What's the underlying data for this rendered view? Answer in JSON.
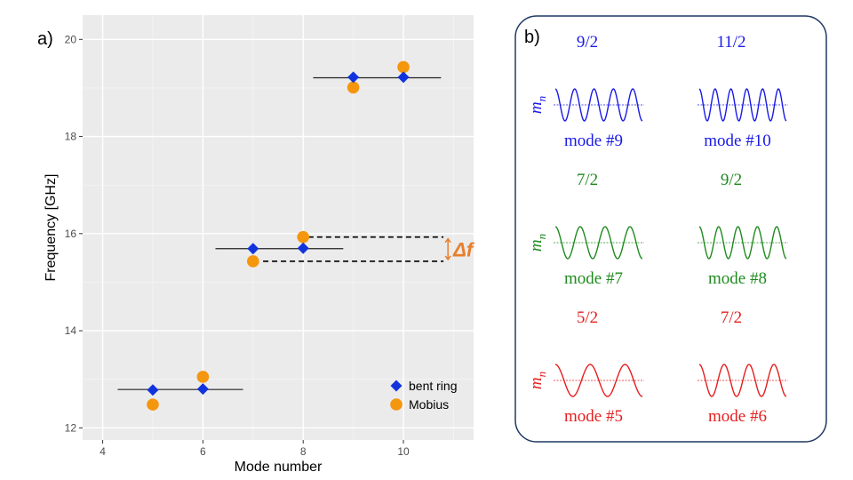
{
  "panel_a": {
    "label": "a)",
    "chart_data": {
      "type": "scatter",
      "xlabel": "Mode number",
      "ylabel": "Frequency [GHz]",
      "xlim": [
        3.6,
        11.4
      ],
      "ylim": [
        11.75,
        20.5
      ],
      "xticks": [
        4,
        6,
        8,
        10
      ],
      "yticks": [
        12,
        14,
        16,
        18,
        20
      ],
      "grid": true,
      "legend_position": "bottom-right",
      "series": [
        {
          "name": "bent ring",
          "marker": "diamond",
          "color": "#1133dd",
          "points": [
            [
              5,
              12.78
            ],
            [
              6,
              12.8
            ],
            [
              7,
              15.69
            ],
            [
              8,
              15.7
            ],
            [
              9,
              19.22
            ],
            [
              10,
              19.22
            ]
          ]
        },
        {
          "name": "Mobius",
          "marker": "circle",
          "color": "#f5960f",
          "points": [
            [
              5,
              12.48
            ],
            [
              6,
              13.05
            ],
            [
              7,
              15.43
            ],
            [
              8,
              15.93
            ],
            [
              9,
              19.01
            ],
            [
              10,
              19.43
            ]
          ]
        }
      ],
      "band_lines": [
        {
          "x": [
            4.3,
            6.8
          ],
          "y": 12.79
        },
        {
          "x": [
            6.25,
            8.8
          ],
          "y": 15.69
        },
        {
          "x": [
            8.2,
            10.75
          ],
          "y": 19.21
        }
      ],
      "delta_annotation": {
        "label": "Δf",
        "y_top": 15.93,
        "y_bottom": 15.43,
        "x_start_top": 8.1,
        "x_start_bottom": 7.2,
        "x_end": 10.8,
        "color": "#e87e2a"
      }
    }
  },
  "panel_b": {
    "label": "b)",
    "columns": [
      [
        {
          "fraction": "9/2",
          "mode": "mode #9",
          "color": "#1a1ae6",
          "cycles": 4.5
        },
        {
          "fraction": "7/2",
          "mode": "mode #7",
          "color": "#1f8a1f",
          "cycles": 3.5
        },
        {
          "fraction": "5/2",
          "mode": "mode #5",
          "color": "#e61e1e",
          "cycles": 2.5
        }
      ],
      [
        {
          "fraction": "11/2",
          "mode": "mode #10",
          "color": "#1a1ae6",
          "cycles": 5.5
        },
        {
          "fraction": "9/2",
          "mode": "mode #8",
          "color": "#1f8a1f",
          "cycles": 4.5
        },
        {
          "fraction": "7/2",
          "mode": "mode #6",
          "color": "#e61e1e",
          "cycles": 3.5
        }
      ]
    ],
    "row_labels": [
      {
        "base": "m",
        "sub": "n",
        "color": "#1a1ae6"
      },
      {
        "base": "m",
        "sub": "n",
        "color": "#1f8a1f"
      },
      {
        "base": "m",
        "sub": "n",
        "color": "#e61e1e"
      }
    ]
  }
}
